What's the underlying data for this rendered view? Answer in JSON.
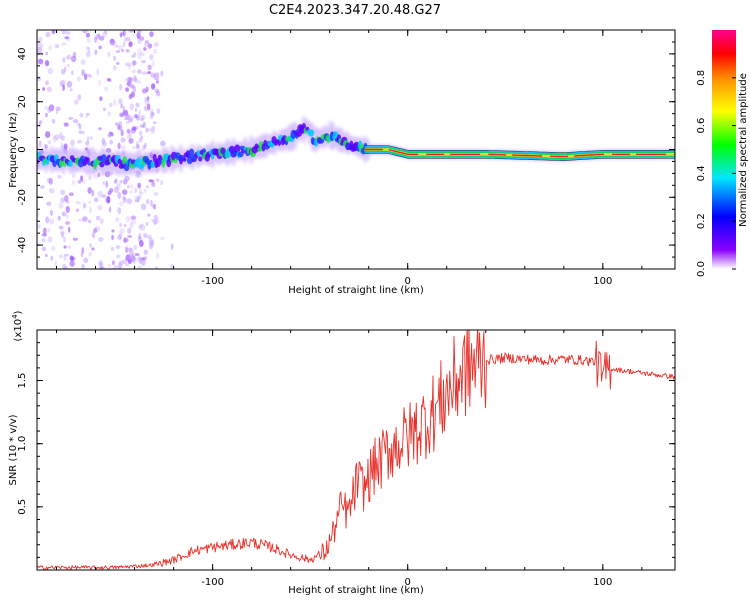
{
  "figure_title": "C2E4.2023.347.20.48.G27",
  "chart_data": [
    {
      "type": "heatmap",
      "title": "C2E4.2023.347.20.48.G27",
      "xlabel": "Height of straight line (km)",
      "ylabel": "Frequency (Hz)",
      "xlim": [
        -190,
        137
      ],
      "ylim": [
        -50,
        50
      ],
      "x_ticks": [
        -100,
        0,
        100
      ],
      "y_ticks": [
        -40,
        -20,
        0,
        20,
        40
      ],
      "colorbar": {
        "label": "Normalized spectral amplitude",
        "range": [
          0,
          1
        ],
        "ticks": [
          0.0,
          0.2,
          0.4,
          0.6,
          0.8
        ],
        "colors": [
          "#ffffff",
          "#8a00ff",
          "#0000ff",
          "#00e6ff",
          "#00ff00",
          "#ffff00",
          "#ff8c00",
          "#ff0000",
          "#ff0090"
        ]
      },
      "ridge": {
        "description_points_x_km": [
          -190,
          -160,
          -140,
          -120,
          -100,
          -80,
          -60,
          -52,
          -48,
          -40,
          -32,
          -22,
          -10,
          0,
          40,
          80,
          100,
          137
        ],
        "frequency_hz": [
          -4,
          -5,
          -6,
          -4,
          -2,
          0,
          5,
          9,
          4,
          6,
          3,
          0,
          0,
          -2,
          -2,
          -3,
          -2,
          -2
        ]
      },
      "grid": false
    },
    {
      "type": "line",
      "xlabel": "Height of straight line (km)",
      "ylabel": "SNR (10 * v/v)",
      "ylabel_multiplier": "(x10",
      "ylabel_multiplier_exp": "4",
      "xlim": [
        -190,
        137
      ],
      "ylim": [
        0,
        1.9
      ],
      "x_ticks": [
        -100,
        0,
        100
      ],
      "y_ticks": [
        0.5,
        1.0,
        1.5
      ],
      "y_tick_labels": [
        "0.5",
        "1.0",
        "1.5"
      ],
      "series": [
        {
          "color": "#e8302a",
          "x": [
            -190,
            -170,
            -150,
            -140,
            -130,
            -120,
            -110,
            -100,
            -90,
            -80,
            -70,
            -60,
            -50,
            -42,
            -38,
            -34,
            -30,
            -26,
            -22,
            -18,
            -14,
            -10,
            -5,
            0,
            5,
            10,
            15,
            20,
            25,
            30,
            40,
            50,
            60,
            70,
            80,
            90,
            96,
            98,
            100,
            102,
            110,
            120,
            130,
            137
          ],
          "values": [
            0.02,
            0.02,
            0.02,
            0.03,
            0.04,
            0.08,
            0.15,
            0.18,
            0.2,
            0.22,
            0.18,
            0.12,
            0.08,
            0.15,
            0.3,
            0.5,
            0.45,
            0.7,
            0.65,
            0.8,
            0.85,
            0.95,
            1.0,
            1.05,
            1.12,
            1.2,
            1.28,
            1.4,
            1.5,
            1.6,
            1.66,
            1.68,
            1.67,
            1.66,
            1.67,
            1.66,
            1.65,
            1.6,
            1.5,
            1.6,
            1.58,
            1.56,
            1.54,
            1.53
          ]
        }
      ],
      "grid": false
    }
  ]
}
